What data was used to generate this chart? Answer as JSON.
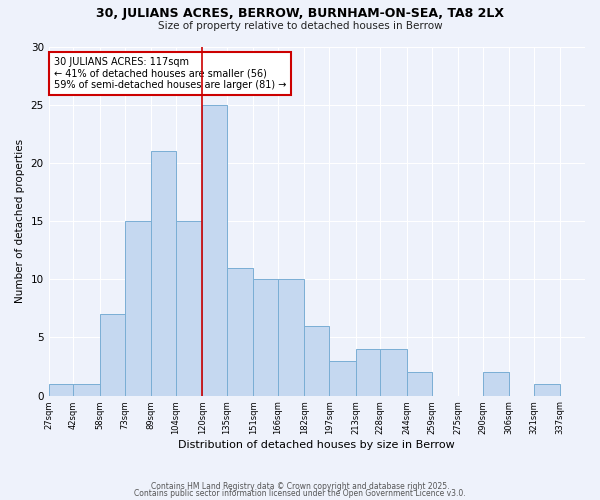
{
  "title": "30, JULIANS ACRES, BERROW, BURNHAM-ON-SEA, TA8 2LX",
  "subtitle": "Size of property relative to detached houses in Berrow",
  "xlabel": "Distribution of detached houses by size in Berrow",
  "ylabel": "Number of detached properties",
  "bin_edges": [
    27,
    42,
    58,
    73,
    89,
    104,
    120,
    135,
    151,
    166,
    182,
    197,
    213,
    228,
    244,
    259,
    275,
    290,
    306,
    321,
    337,
    352
  ],
  "bin_labels": [
    "27sqm",
    "42sqm",
    "58sqm",
    "73sqm",
    "89sqm",
    "104sqm",
    "120sqm",
    "135sqm",
    "151sqm",
    "166sqm",
    "182sqm",
    "197sqm",
    "213sqm",
    "228sqm",
    "244sqm",
    "259sqm",
    "275sqm",
    "290sqm",
    "306sqm",
    "321sqm",
    "337sqm"
  ],
  "counts": [
    1,
    1,
    7,
    15,
    21,
    15,
    25,
    11,
    10,
    10,
    6,
    3,
    4,
    4,
    2,
    0,
    0,
    2,
    0,
    1,
    0
  ],
  "bar_color": "#c5d8f0",
  "bar_edge_color": "#7aaed4",
  "vline_x": 120,
  "vline_color": "#cc0000",
  "annotation_text": "30 JULIANS ACRES: 117sqm\n← 41% of detached houses are smaller (56)\n59% of semi-detached houses are larger (81) →",
  "annotation_box_color": "#ffffff",
  "annotation_box_edge_color": "#cc0000",
  "ylim": [
    0,
    30
  ],
  "yticks": [
    0,
    5,
    10,
    15,
    20,
    25,
    30
  ],
  "background_color": "#eef2fb",
  "footer_line1": "Contains HM Land Registry data © Crown copyright and database right 2025.",
  "footer_line2": "Contains public sector information licensed under the Open Government Licence v3.0."
}
